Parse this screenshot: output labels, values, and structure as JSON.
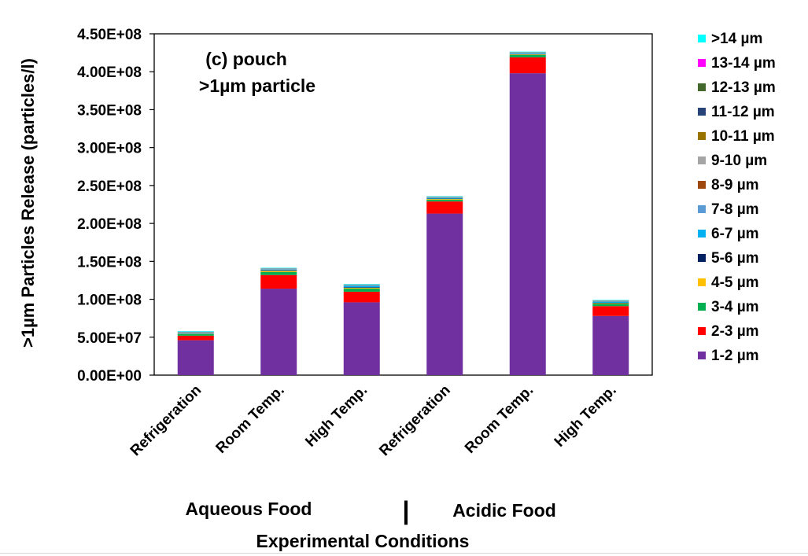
{
  "chart_data": {
    "type": "bar",
    "stacked": true,
    "panel_label": "(c) pouch",
    "panel_sublabel": ">1µm particle",
    "ylabel": ">1µm Particles Release (particles/l)",
    "xlabel": "Experimental Conditions",
    "group_labels": [
      "Aqueous Food",
      "Acidic Food"
    ],
    "group_separator": "|",
    "categories": [
      "Refrigeration",
      "Room Temp.",
      "High Temp.",
      "Refrigeration",
      "Room Temp.",
      "High Temp."
    ],
    "ylim": [
      0,
      450000000
    ],
    "yticks": [
      0,
      50000000,
      100000000,
      150000000,
      200000000,
      250000000,
      300000000,
      350000000,
      400000000,
      450000000
    ],
    "ytick_labels": [
      "0.00E+00",
      "5.00E+07",
      "1.00E+08",
      "1.50E+08",
      "2.00E+08",
      "2.50E+08",
      "3.00E+08",
      "3.50E+08",
      "4.00E+08",
      "4.50E+08"
    ],
    "grid": false,
    "legend_position": "right",
    "series": [
      {
        "name": "1-2 µm",
        "color": "#7030a0",
        "values": [
          46000000,
          114000000,
          96000000,
          213000000,
          398000000,
          78000000
        ]
      },
      {
        "name": "2-3 µm",
        "color": "#ff0000",
        "values": [
          6000000,
          18000000,
          14000000,
          16000000,
          21000000,
          13000000
        ]
      },
      {
        "name": "3-4 µm",
        "color": "#00b050",
        "values": [
          2000000,
          4000000,
          4000000,
          2500000,
          3000000,
          3000000
        ]
      },
      {
        "name": "4-5 µm",
        "color": "#ffc000",
        "values": [
          500000,
          1500000,
          1000000,
          800000,
          800000,
          800000
        ]
      },
      {
        "name": "5-6 µm",
        "color": "#002060",
        "values": [
          300000,
          800000,
          800000,
          400000,
          400000,
          600000
        ]
      },
      {
        "name": "6-7 µm",
        "color": "#00b0f0",
        "values": [
          1000000,
          1000000,
          2000000,
          1000000,
          1000000,
          1500000
        ]
      },
      {
        "name": "7-8 µm",
        "color": "#5b9bd5",
        "values": [
          300000,
          300000,
          500000,
          300000,
          400000,
          300000
        ]
      },
      {
        "name": "8-9 µm",
        "color": "#9e480e",
        "values": [
          200000,
          200000,
          200000,
          200000,
          200000,
          200000
        ]
      },
      {
        "name": "9-10 µm",
        "color": "#a5a5a5",
        "values": [
          300000,
          300000,
          300000,
          300000,
          300000,
          300000
        ]
      },
      {
        "name": "10-11 µm",
        "color": "#997300",
        "values": [
          200000,
          200000,
          200000,
          200000,
          200000,
          200000
        ]
      },
      {
        "name": "11-12 µm",
        "color": "#264478",
        "values": [
          200000,
          200000,
          200000,
          200000,
          200000,
          200000
        ]
      },
      {
        "name": "12-13 µm",
        "color": "#43682b",
        "values": [
          200000,
          200000,
          200000,
          200000,
          200000,
          200000
        ]
      },
      {
        "name": "13-14 µm",
        "color": "#ff00ff",
        "values": [
          100000,
          100000,
          100000,
          100000,
          100000,
          100000
        ]
      },
      {
        "name": ">14 µm",
        "color": "#00ffff",
        "values": [
          700000,
          700000,
          700000,
          700000,
          700000,
          700000
        ]
      }
    ]
  }
}
